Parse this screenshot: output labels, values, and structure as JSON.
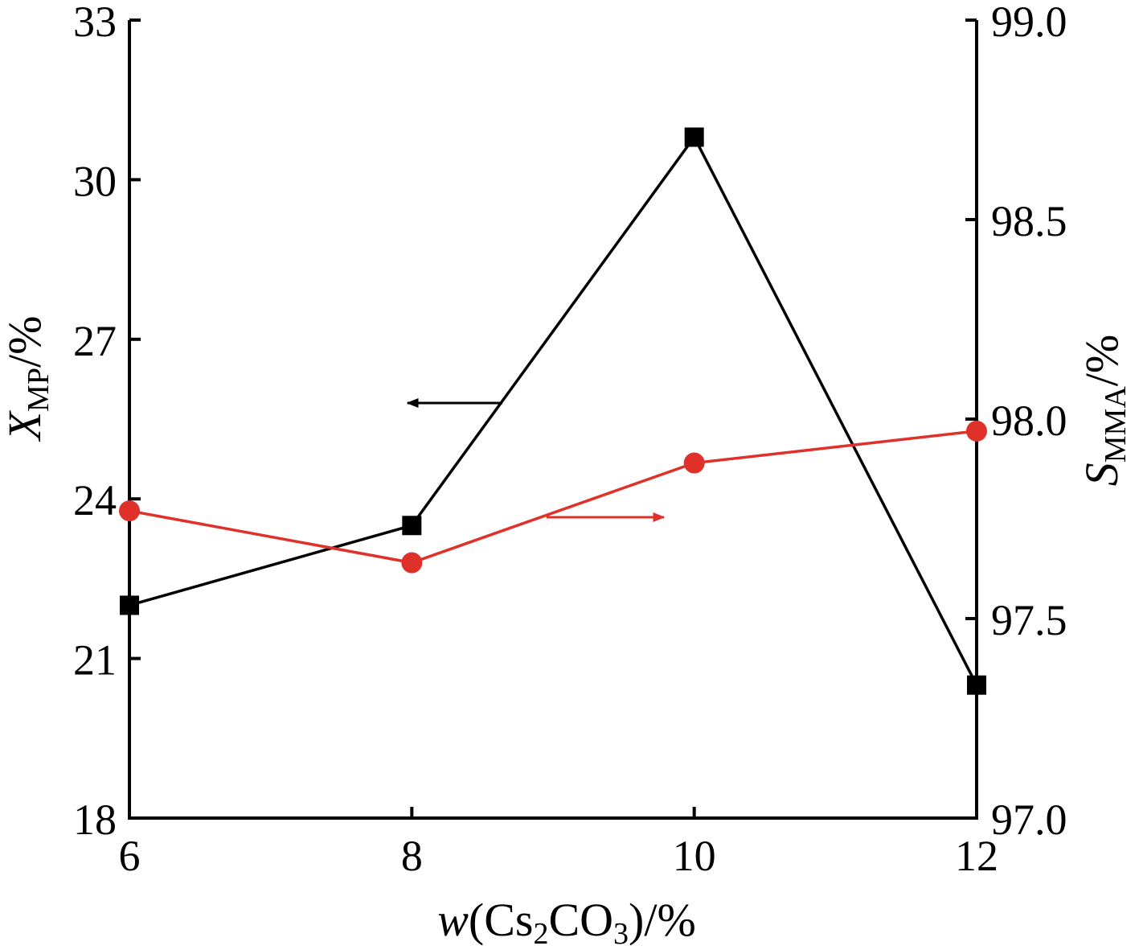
{
  "chart_data": {
    "type": "line",
    "x": [
      6,
      8,
      10,
      12
    ],
    "xlim": [
      6,
      12
    ],
    "x_ticks": [
      "6",
      "8",
      "10",
      "12"
    ],
    "xlabel": {
      "italic": "w",
      "pre": "(Cs",
      "sub1": "2",
      "mid": "CO",
      "sub2": "3",
      "post": ")/%"
    },
    "y_left": {
      "label": {
        "main": "X",
        "sub": "MP",
        "post": "/%"
      },
      "ylim": [
        18,
        33
      ],
      "ticks": [
        "18",
        "21",
        "24",
        "27",
        "30",
        "33"
      ]
    },
    "y_right": {
      "label": {
        "main": "S",
        "sub": "MMA",
        "post": "/%"
      },
      "ylim": [
        97.0,
        99.0
      ],
      "ticks": [
        "97.0",
        "97.5",
        "98.0",
        "98.5",
        "99.0"
      ]
    },
    "series": [
      {
        "axis": "left",
        "marker": "square",
        "color": "#000000",
        "values": [
          22.0,
          23.5,
          30.8,
          20.5
        ]
      },
      {
        "axis": "right",
        "marker": "circle",
        "color": "#e0302a",
        "values": [
          97.77,
          97.64,
          97.89,
          97.97
        ]
      }
    ],
    "annotations": [
      {
        "type": "arrow",
        "direction": "left",
        "points_to_axis": "left",
        "color": "#000000"
      },
      {
        "type": "arrow",
        "direction": "right",
        "points_to_axis": "right",
        "color": "#e0302a"
      }
    ],
    "grid": false
  }
}
